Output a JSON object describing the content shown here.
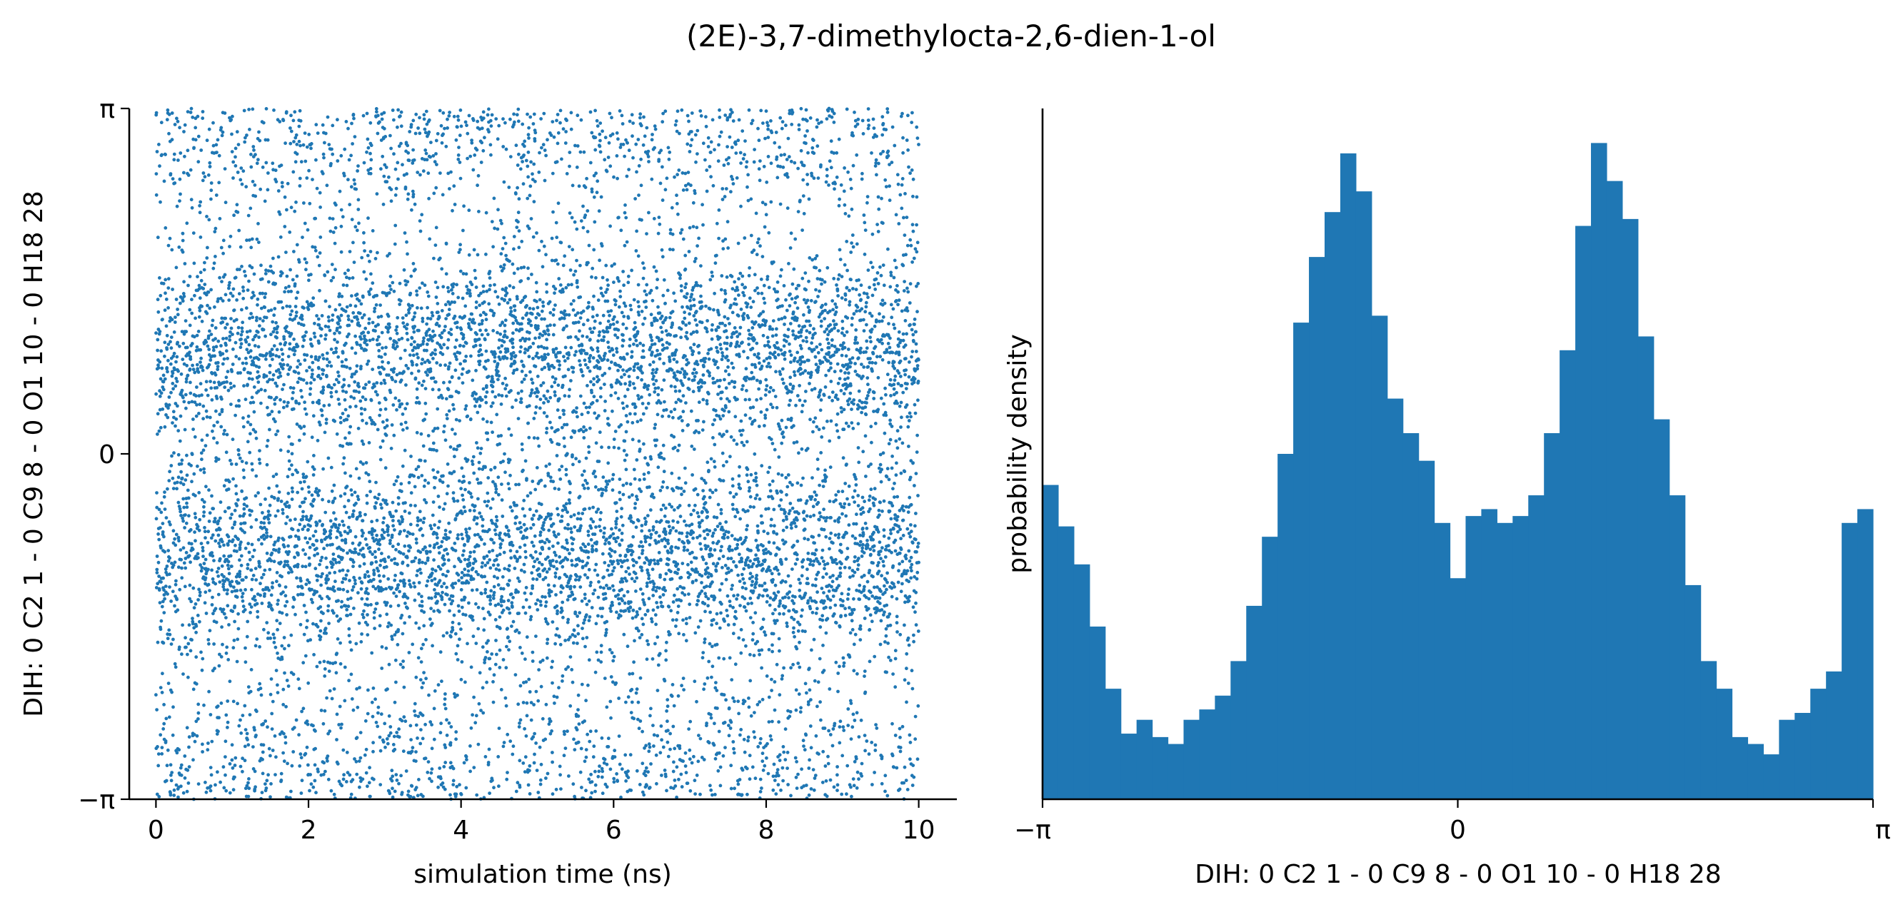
{
  "title": "(2E)-3,7-dimethylocta-2,6-dien-1-ol",
  "colors": {
    "series": "#1f77b4",
    "axis": "#000000"
  },
  "chart_data": [
    {
      "type": "scatter",
      "xlabel": "simulation time (ns)",
      "ylabel": "DIH:  0 C2 1 -  0 C9 8 -  0 O1 10 -  0 H18 28",
      "xlim": [
        -0.35,
        10.5
      ],
      "ylim": [
        -3.14159,
        3.14159
      ],
      "x_ticks": [
        {
          "value": 0,
          "label": "0"
        },
        {
          "value": 2,
          "label": "2"
        },
        {
          "value": 4,
          "label": "4"
        },
        {
          "value": 6,
          "label": "6"
        },
        {
          "value": 8,
          "label": "8"
        },
        {
          "value": 10,
          "label": "10"
        }
      ],
      "y_ticks": [
        {
          "value": -3.14159,
          "label": "−π"
        },
        {
          "value": 0,
          "label": "0"
        },
        {
          "value": 3.14159,
          "label": "π"
        }
      ],
      "grid": false,
      "n_points": 10000,
      "time_range": [
        0,
        10
      ],
      "distribution": {
        "modes": [
          {
            "center": -0.95,
            "width": 0.45,
            "weight": 0.33
          },
          {
            "center": 0.95,
            "width": 0.45,
            "weight": 0.33
          },
          {
            "center": 3.14159,
            "width": 0.6,
            "weight": 0.18
          }
        ],
        "uniform_weight": 0.16
      }
    },
    {
      "type": "bar",
      "subtype": "histogram",
      "xlabel": "DIH:  0 C2 1 -  0 C9 8 -  0 O1 10 -  0 H18 28",
      "ylabel": "probability density",
      "xlim": [
        -3.14159,
        3.14159
      ],
      "ylim": [
        0,
        0.2
      ],
      "x_ticks": [
        {
          "value": -3.14159,
          "label": "−π"
        },
        {
          "value": 0,
          "label": "0"
        },
        {
          "value": 3.14159,
          "label": "π"
        }
      ],
      "y_ticks_shown": false,
      "bin_range": [
        -3.14159,
        3.14159
      ],
      "values": [
        0.091,
        0.079,
        0.068,
        0.05,
        0.032,
        0.019,
        0.023,
        0.018,
        0.016,
        0.023,
        0.026,
        0.03,
        0.04,
        0.056,
        0.076,
        0.1,
        0.138,
        0.157,
        0.17,
        0.187,
        0.176,
        0.14,
        0.116,
        0.106,
        0.098,
        0.08,
        0.064,
        0.082,
        0.084,
        0.08,
        0.082,
        0.088,
        0.106,
        0.13,
        0.166,
        0.19,
        0.179,
        0.168,
        0.134,
        0.11,
        0.088,
        0.062,
        0.04,
        0.032,
        0.018,
        0.016,
        0.013,
        0.023,
        0.025,
        0.032,
        0.037,
        0.08,
        0.084
      ]
    }
  ]
}
